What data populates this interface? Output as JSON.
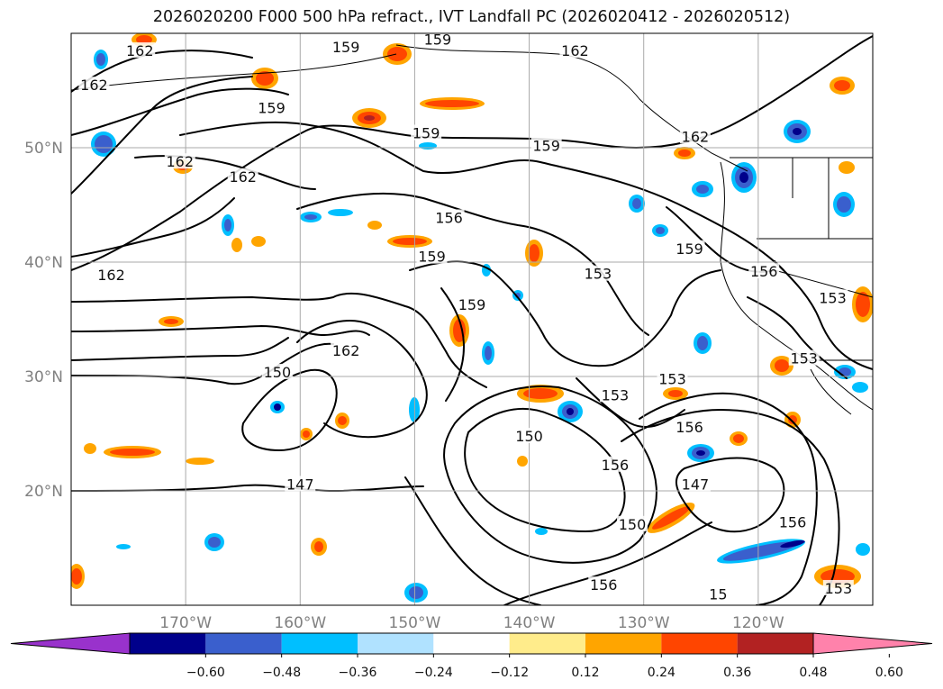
{
  "title": "2026020200 F000 500 hPa refract., IVT Landfall PC (2026020412 - 2026020512)",
  "map": {
    "lon_range": [
      -180,
      -110
    ],
    "lat_range": [
      10,
      60
    ],
    "gridlines": true,
    "lon_ticks": [
      {
        "value": -170,
        "label": "170°W"
      },
      {
        "value": -160,
        "label": "160°W"
      },
      {
        "value": -150,
        "label": "150°W"
      },
      {
        "value": -140,
        "label": "140°W"
      },
      {
        "value": -130,
        "label": "130°W"
      },
      {
        "value": -120,
        "label": "120°W"
      }
    ],
    "lat_ticks": [
      {
        "value": 20,
        "label": "20°N"
      },
      {
        "value": 30,
        "label": "30°N"
      },
      {
        "value": 40,
        "label": "40°N"
      },
      {
        "value": 50,
        "label": "50°N"
      }
    ],
    "contour_labels": [
      {
        "text": "162",
        "lon": -174,
        "lat": 58.5
      },
      {
        "text": "162",
        "lon": -178,
        "lat": 55.5
      },
      {
        "text": "159",
        "lon": -156,
        "lat": 58.8
      },
      {
        "text": "159",
        "lon": -148,
        "lat": 59.5
      },
      {
        "text": "162",
        "lon": -136,
        "lat": 58.5
      },
      {
        "text": "159",
        "lon": -162.5,
        "lat": 53.5
      },
      {
        "text": "159",
        "lon": -149,
        "lat": 51.3
      },
      {
        "text": "159",
        "lon": -138.5,
        "lat": 50.2
      },
      {
        "text": "162",
        "lon": -125.5,
        "lat": 51
      },
      {
        "text": "162",
        "lon": -170.5,
        "lat": 48.8
      },
      {
        "text": "162",
        "lon": -165,
        "lat": 47.5
      },
      {
        "text": "156",
        "lon": -147,
        "lat": 43.9
      },
      {
        "text": "159",
        "lon": -148.5,
        "lat": 40.5
      },
      {
        "text": "159",
        "lon": -126,
        "lat": 41.2
      },
      {
        "text": "162",
        "lon": -176.5,
        "lat": 38.9
      },
      {
        "text": "153",
        "lon": -134,
        "lat": 39
      },
      {
        "text": "156",
        "lon": -119.5,
        "lat": 39.2
      },
      {
        "text": "153",
        "lon": -113.5,
        "lat": 36.9
      },
      {
        "text": "159",
        "lon": -145,
        "lat": 36.3
      },
      {
        "text": "162",
        "lon": -156,
        "lat": 32.3
      },
      {
        "text": "153",
        "lon": -116,
        "lat": 31.6
      },
      {
        "text": "150",
        "lon": -162,
        "lat": 30.4
      },
      {
        "text": "153",
        "lon": -127.5,
        "lat": 29.8
      },
      {
        "text": "153",
        "lon": -132.5,
        "lat": 28.4
      },
      {
        "text": "150",
        "lon": -140,
        "lat": 24.8
      },
      {
        "text": "156",
        "lon": -126,
        "lat": 25.6
      },
      {
        "text": "156",
        "lon": -132.5,
        "lat": 22.3
      },
      {
        "text": "147",
        "lon": -160,
        "lat": 20.6
      },
      {
        "text": "147",
        "lon": -125.5,
        "lat": 20.6
      },
      {
        "text": "150",
        "lon": -131,
        "lat": 17.1
      },
      {
        "text": "156",
        "lon": -117,
        "lat": 17.3
      },
      {
        "text": "156",
        "lon": -133.5,
        "lat": 11.8
      },
      {
        "text": "153",
        "lon": -113,
        "lat": 11.5
      },
      {
        "text": "15",
        "lon": -123.5,
        "lat": 11
      }
    ]
  },
  "colorbar": {
    "tick_labels": [
      "−0.60",
      "−0.48",
      "−0.36",
      "−0.24",
      "−0.12",
      "0.12",
      "0.24",
      "0.36",
      "0.48",
      "0.60"
    ],
    "bins": [
      {
        "color": "#9932cc"
      },
      {
        "color": "#00008b"
      },
      {
        "color": "#3a5fcd"
      },
      {
        "color": "#00bfff"
      },
      {
        "color": "#b0e2ff"
      },
      {
        "color": "#ffffff"
      },
      {
        "color": "#ffec8b"
      },
      {
        "color": "#ffa500"
      },
      {
        "color": "#ff4500"
      },
      {
        "color": "#b22222"
      },
      {
        "color": "#ff82ab"
      }
    ]
  },
  "colors": {
    "grid": "#a9a9a9",
    "contour": "#000000",
    "coast": "#000000"
  }
}
